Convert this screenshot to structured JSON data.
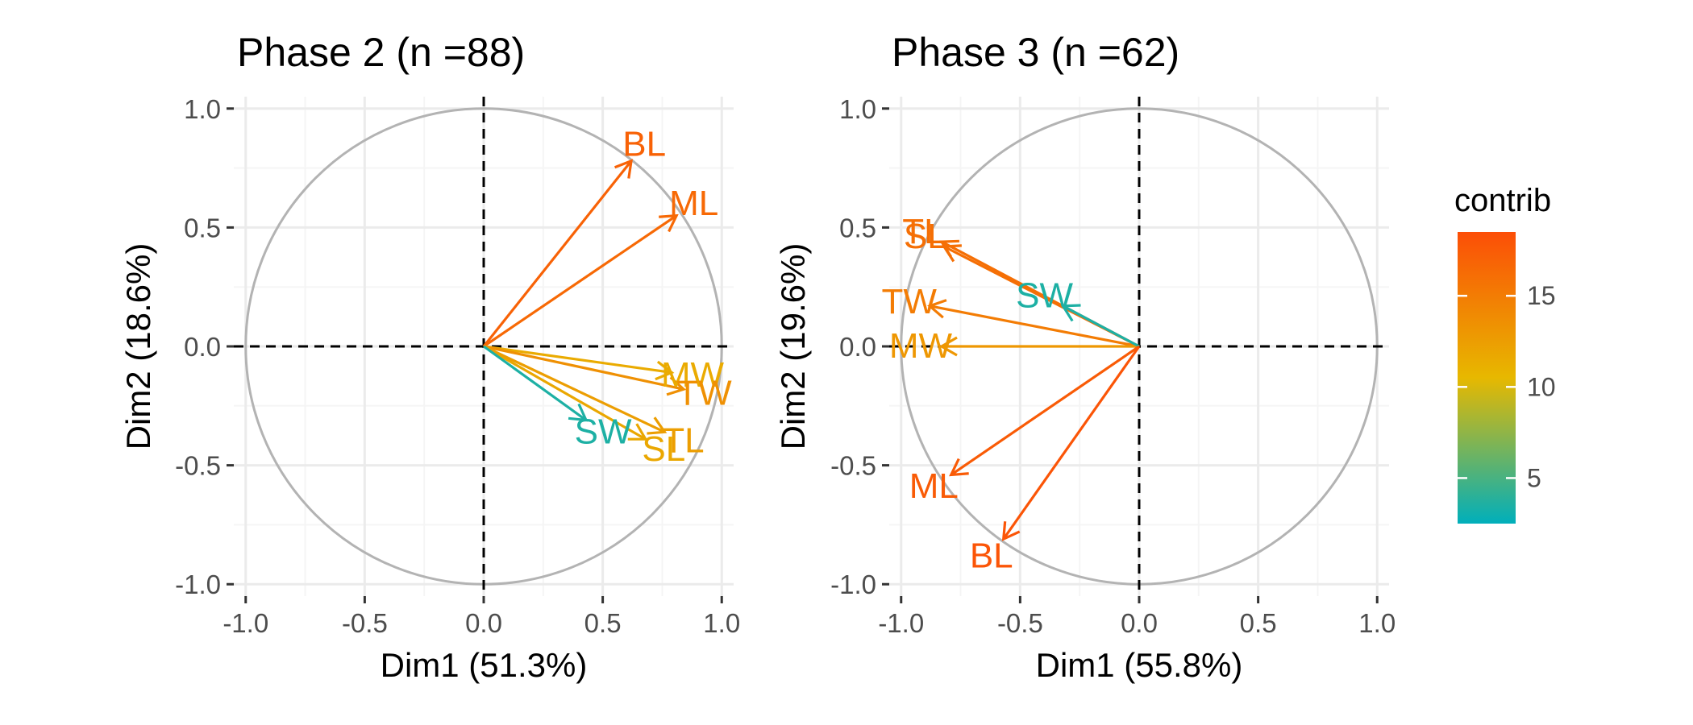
{
  "chart_data": [
    {
      "type": "scatter",
      "subtype": "pca-variable-correlation-circle",
      "title": "Phase 2 (n =88)",
      "xlabel": "Dim1 (51.3%)",
      "ylabel": "Dim2 (18.6%)",
      "xlim": [
        -1.05,
        1.05
      ],
      "ylim": [
        -1.05,
        1.05
      ],
      "x_ticks": [
        "-1.0",
        "-0.5",
        "0.0",
        "0.5",
        "1.0"
      ],
      "y_ticks": [
        "-1.0",
        "-0.5",
        "0.0",
        "0.5",
        "1.0"
      ],
      "grid": true,
      "variables": [
        {
          "name": "BL",
          "x": 0.62,
          "y": 0.78,
          "contrib": 17.0
        },
        {
          "name": "ML",
          "x": 0.81,
          "y": 0.55,
          "contrib": 16.5
        },
        {
          "name": "MW",
          "x": 0.79,
          "y": -0.11,
          "contrib": 11.5
        },
        {
          "name": "TW",
          "x": 0.84,
          "y": -0.18,
          "contrib": 13.5
        },
        {
          "name": "SL",
          "x": 0.68,
          "y": -0.39,
          "contrib": 11.8
        },
        {
          "name": "TL",
          "x": 0.76,
          "y": -0.36,
          "contrib": 12.5
        },
        {
          "name": "SW",
          "x": 0.43,
          "y": -0.31,
          "contrib": 3.5
        }
      ]
    },
    {
      "type": "scatter",
      "subtype": "pca-variable-correlation-circle",
      "title": "Phase 3 (n =62)",
      "xlabel": "Dim1 (55.8%)",
      "ylabel": "Dim2 (19.6%)",
      "xlim": [
        -1.05,
        1.05
      ],
      "ylim": [
        -1.05,
        1.05
      ],
      "x_ticks": [
        "-1.0",
        "-0.5",
        "0.0",
        "0.5",
        "1.0"
      ],
      "y_ticks": [
        "-1.0",
        "-0.5",
        "0.0",
        "0.5",
        "1.0"
      ],
      "grid": true,
      "variables": [
        {
          "name": "TL",
          "x": -0.83,
          "y": 0.44,
          "contrib": 16.0
        },
        {
          "name": "SL",
          "x": -0.82,
          "y": 0.42,
          "contrib": 16.0
        },
        {
          "name": "TW",
          "x": -0.88,
          "y": 0.17,
          "contrib": 15.0
        },
        {
          "name": "MW",
          "x": -0.83,
          "y": 0.0,
          "contrib": 13.0
        },
        {
          "name": "SW",
          "x": -0.32,
          "y": 0.17,
          "contrib": 3.5
        },
        {
          "name": "ML",
          "x": -0.79,
          "y": -0.54,
          "contrib": 17.5
        },
        {
          "name": "BL",
          "x": -0.57,
          "y": -0.81,
          "contrib": 18.0
        }
      ]
    }
  ],
  "legend": {
    "title": "contrib",
    "ticks": [
      5,
      10,
      15
    ],
    "range": [
      2.5,
      18.5
    ],
    "placement": "right",
    "colors": [
      "#00AFBB",
      "#E7B800",
      "#FC4E07"
    ]
  },
  "style": {
    "arrow_color_low": "#00AFBB",
    "arrow_color_mid": "#E7B800",
    "arrow_color_high": "#FC4E07",
    "circle_color": "#b3b3b3",
    "grid_major": "#ebebeb",
    "grid_minor": "#f5f5f5"
  }
}
